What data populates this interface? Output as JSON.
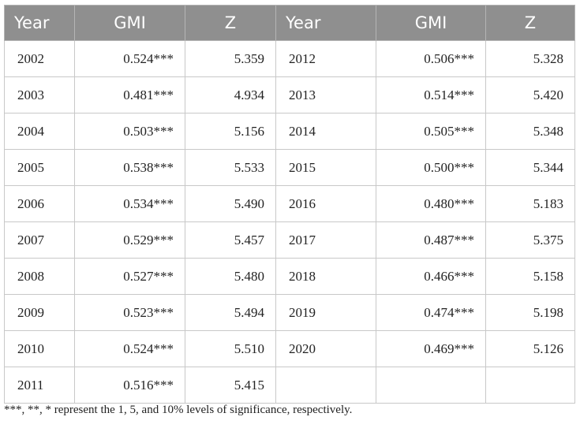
{
  "table": {
    "headers": [
      "Year",
      "GMI",
      "Z",
      "Year",
      "GMI",
      "Z"
    ],
    "rows": [
      [
        "2002",
        "0.524***",
        "5.359",
        "2012",
        "0.506***",
        "5.328"
      ],
      [
        "2003",
        "0.481***",
        "4.934",
        "2013",
        "0.514***",
        "5.420"
      ],
      [
        "2004",
        "0.503***",
        "5.156",
        "2014",
        "0.505***",
        "5.348"
      ],
      [
        "2005",
        "0.538***",
        "5.533",
        "2015",
        "0.500***",
        "5.344"
      ],
      [
        "2006",
        "0.534***",
        "5.490",
        "2016",
        "0.480***",
        "5.183"
      ],
      [
        "2007",
        "0.529***",
        "5.457",
        "2017",
        "0.487***",
        "5.375"
      ],
      [
        "2008",
        "0.527***",
        "5.480",
        "2018",
        "0.466***",
        "5.158"
      ],
      [
        "2009",
        "0.523***",
        "5.494",
        "2019",
        "0.474***",
        "5.198"
      ],
      [
        "2010",
        "0.524***",
        "5.510",
        "2020",
        "0.469***",
        "5.126"
      ],
      [
        "2011",
        "0.516***",
        "5.415",
        "",
        "",
        ""
      ]
    ]
  },
  "footnote": "***, **, * represent the 1, 5, and 10% levels of significance, respectively."
}
